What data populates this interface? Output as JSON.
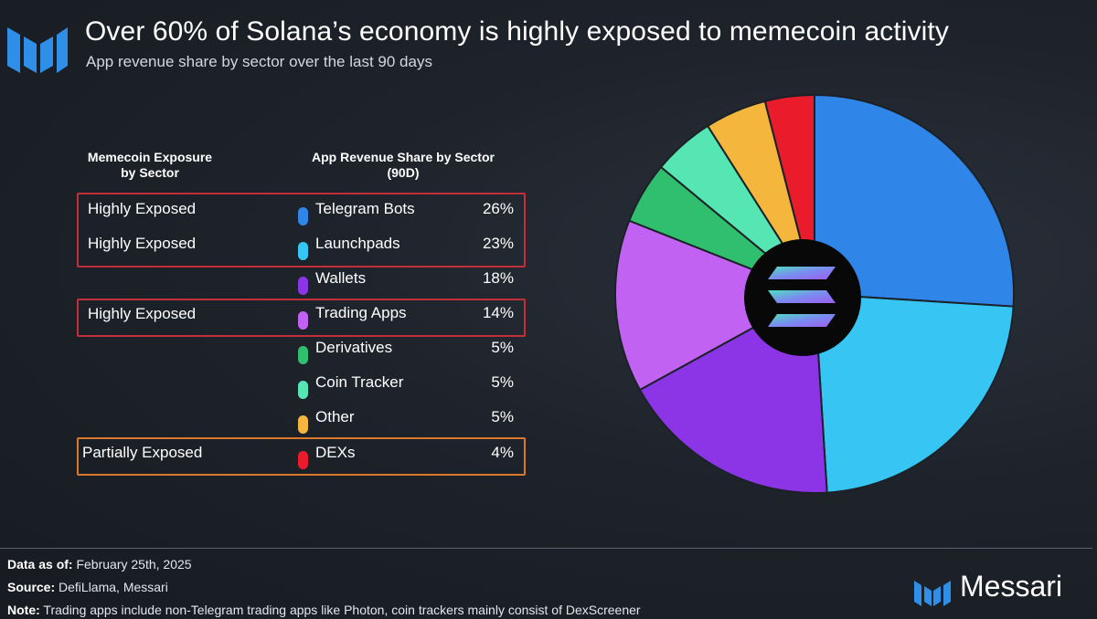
{
  "header": {
    "title": "Over 60% of Solana’s economy is highly exposed to memecoin activity",
    "subtitle": "App revenue share by sector over the last 90 days"
  },
  "table": {
    "exposure_header": [
      "Memecoin Exposure",
      "by Sector"
    ],
    "revenue_header": [
      "App Revenue Share by Sector",
      "(90D)"
    ],
    "exposure_groups": [
      {
        "label": "Highly Exposed",
        "color": "#c1303a"
      },
      {
        "label": "Highly Exposed",
        "color": "#c1303a"
      },
      {
        "label": "Partially Exposed",
        "color": "#d97a2a"
      }
    ],
    "exposure_row_labels": [
      "Highly Exposed",
      "Highly Exposed",
      "Highly Exposed",
      "Partially Exposed"
    ]
  },
  "chart_data": {
    "type": "pie",
    "title": "App revenue share by sector over the last 90 days",
    "unit": "%",
    "slices": [
      {
        "label": "Telegram Bots",
        "value": 26,
        "display": "26%",
        "color": "#2f86e8"
      },
      {
        "label": "Launchpads",
        "value": 23,
        "display": "23%",
        "color": "#37c6f4"
      },
      {
        "label": "Wallets",
        "value": 18,
        "display": "18%",
        "color": "#8b35e6"
      },
      {
        "label": "Trading Apps",
        "value": 14,
        "display": "14%",
        "color": "#c262f2"
      },
      {
        "label": "Derivatives",
        "value": 5,
        "display": "5%",
        "color": "#2fbf6e"
      },
      {
        "label": "Coin Tracker",
        "value": 5,
        "display": "5%",
        "color": "#55e6b4"
      },
      {
        "label": "Other",
        "value": 5,
        "display": "5%",
        "color": "#f4b63c"
      },
      {
        "label": "DEXs",
        "value": 4,
        "display": "4%",
        "color": "#ea1c2c"
      }
    ],
    "start_angle": "12 o'clock, clockwise"
  },
  "footer": {
    "data_as_of_label": "Data as of:",
    "data_as_of_value": "February 25th, 2025",
    "source_label": "Source:",
    "source_value": "DefiLlama, Messari",
    "note_label": "Note:",
    "note_value": "Trading apps include non-Telegram trading apps like Photon, coin trackers mainly consist of DexScreener"
  },
  "brand": {
    "name": "Messari",
    "logo": "messari-logo-icon",
    "accent_color": "#2f8fe8"
  },
  "hub_logo": "solana-logo-icon"
}
